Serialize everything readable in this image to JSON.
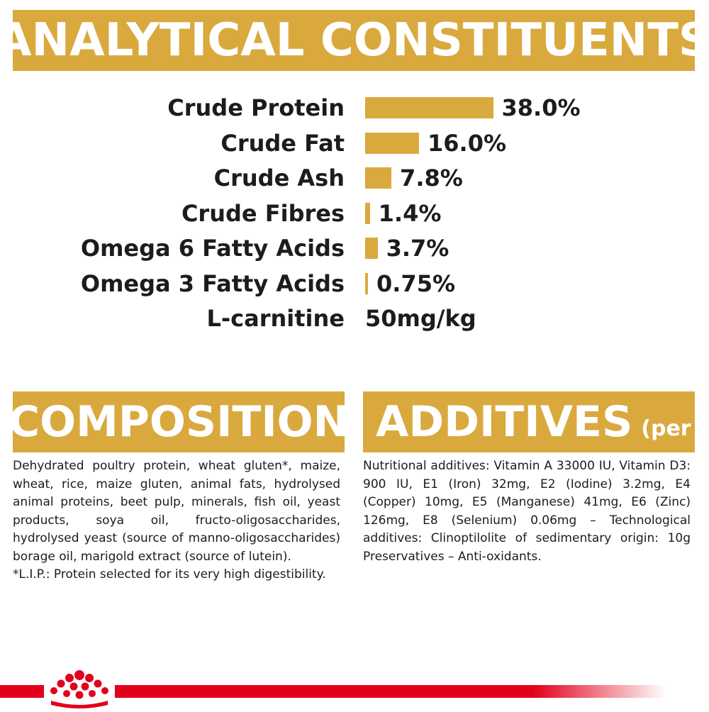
{
  "headers": {
    "analytical": "ANALYTICAL CONSTITUENTS",
    "composition": "COMPOSITION",
    "additives": "ADDITIVES",
    "additives_sub": "(per kg)"
  },
  "constituents": [
    {
      "label": "Crude Protein",
      "value": "38.0%",
      "level": 38.0
    },
    {
      "label": "Crude Fat",
      "value": "16.0%",
      "level": 16.0
    },
    {
      "label": "Crude Ash",
      "value": "7.8%",
      "level": 7.8
    },
    {
      "label": "Crude Fibres",
      "value": "1.4%",
      "level": 1.4
    },
    {
      "label": "Omega 6 Fatty Acids",
      "value": "3.7%",
      "level": 3.7
    },
    {
      "label": "Omega 3 Fatty Acids",
      "value": "0.75%",
      "level": 0.75
    },
    {
      "label": "L-carnitine",
      "value": "50mg/kg"
    }
  ],
  "composition": {
    "text": "Dehydrated poultry protein, wheat gluten*, maize, wheat, rice, maize gluten, animal fats, hydrolysed animal proteins, beet pulp, minerals, fish oil, yeast products, soya oil, fructo-oligosaccharides, hydrolysed yeast (source of manno-oligosaccharides) borage oil, marigold extract (source of lutein).",
    "note": "*L.I.P.: Protein selected for its very high digestibility."
  },
  "additives": {
    "text": "Nutritional additives: Vitamin A 33000 IU, Vitamin D3: 900 IU, E1 (Iron) 32mg, E2 (Iodine) 3.2mg, E4 (Copper) 10mg, E5 (Manganese) 41mg, E6 (Zinc) 126mg, E8 (Selenium) 0.06mg – Technological additives: Clinoptilolite of sedimentary origin: 10g Preservatives – Anti-oxidants."
  },
  "colors": {
    "gold": "#d9a93e",
    "brand_red": "#e3001b"
  },
  "logo": {
    "icon": "royal-crown-icon",
    "color": "#e3001b"
  }
}
